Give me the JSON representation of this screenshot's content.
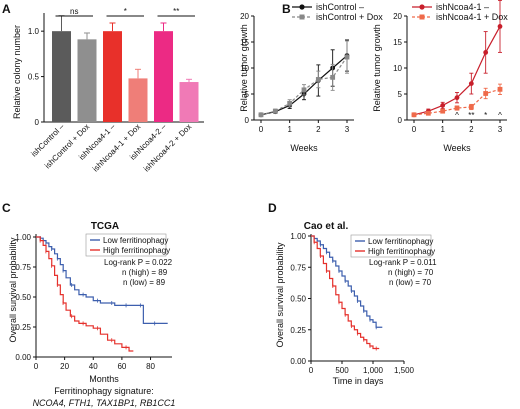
{
  "panels": {
    "A": "A",
    "B": "B",
    "C": "C",
    "D": "D"
  },
  "colors": {
    "dark_gray": "#5b5b5b",
    "mid_gray": "#8f8f8f",
    "red": "#e8302a",
    "salmon": "#ef7e78",
    "pink": "#ec2a84",
    "light_pink": "#f07ab6",
    "dark_red": "#c81f2b",
    "km_blue": "#3d5fae",
    "km_red": "#e5312c"
  },
  "chart_data": [
    {
      "id": "A",
      "type": "bar",
      "ylabel": "Relative colony number",
      "ylim": [
        0,
        1.2
      ],
      "yticks": [
        "0",
        "0.5",
        "1.0"
      ],
      "categories": [
        "ishControl –",
        "ishControl + Dox",
        "ishNcoa4-1 –",
        "ishNcoa4-1 + Dox",
        "ishNcoa4-2 –",
        "ishNcoa4-2 + Dox"
      ],
      "values": [
        1.0,
        0.91,
        1.0,
        0.48,
        1.0,
        0.44
      ],
      "errors": [
        0.17,
        0.07,
        0.09,
        0.1,
        0.09,
        0.03
      ],
      "significance": [
        {
          "from": 0,
          "to": 1,
          "label": "ns"
        },
        {
          "from": 2,
          "to": 3,
          "label": "*"
        },
        {
          "from": 4,
          "to": 5,
          "label": "**"
        }
      ]
    },
    {
      "id": "B-left",
      "type": "line",
      "xlabel": "Weeks",
      "ylabel": "Relative tumor growth",
      "x": [
        0,
        0.5,
        1,
        1.5,
        2,
        2.5,
        3
      ],
      "xticks": [
        "0",
        "1",
        "2",
        "3"
      ],
      "ylim": [
        0,
        20
      ],
      "yticks": [
        "0",
        "5",
        "10",
        "15",
        "20"
      ],
      "series": [
        {
          "name": "ishControl –",
          "values": [
            1.0,
            1.6,
            2.8,
            5.0,
            7.6,
            10.0,
            12.4
          ],
          "errors": [
            0.2,
            0.3,
            0.6,
            1.1,
            3.0,
            3.5,
            3.0
          ]
        },
        {
          "name": "ishControl + Dox",
          "values": [
            1.0,
            1.7,
            3.2,
            5.8,
            7.8,
            8.2,
            12.1
          ],
          "errors": [
            0.2,
            0.4,
            0.7,
            1.0,
            1.6,
            2.5,
            3.1
          ]
        }
      ]
    },
    {
      "id": "B-right",
      "type": "line",
      "xlabel": "Weeks",
      "ylabel": "Relative tumor growth",
      "x": [
        0,
        0.5,
        1,
        1.5,
        2,
        2.5,
        3
      ],
      "xticks": [
        "0",
        "1",
        "2",
        "3"
      ],
      "ylim": [
        0,
        20
      ],
      "yticks": [
        "0",
        "5",
        "10",
        "15",
        "20"
      ],
      "series": [
        {
          "name": "ishNcoa4-1 –",
          "values": [
            1.0,
            1.7,
            2.8,
            4.3,
            7.0,
            13.0,
            18.0
          ],
          "errors": [
            0.2,
            0.4,
            0.6,
            1.0,
            2.0,
            4.0,
            5.0
          ]
        },
        {
          "name": "ishNcoa4-1 + Dox",
          "values": [
            1.0,
            1.3,
            1.7,
            2.3,
            2.5,
            5.1,
            5.9
          ],
          "errors": [
            0.2,
            0.2,
            0.3,
            0.4,
            0.5,
            1.0,
            1.0
          ]
        }
      ],
      "annotations": [
        {
          "x": 1.5,
          "label": "^"
        },
        {
          "x": 2,
          "label": "**"
        },
        {
          "x": 2.5,
          "label": "*"
        },
        {
          "x": 3,
          "label": "^"
        }
      ]
    },
    {
      "id": "C",
      "type": "line",
      "title": "TCGA",
      "xlabel": "Months",
      "ylabel": "Overall survival probability",
      "xlim": [
        0,
        95
      ],
      "ylim": [
        0,
        1
      ],
      "yticks": [
        "0.00",
        "0.25",
        "0.50",
        "0.75",
        "1.00"
      ],
      "xticks": [
        "0",
        "20",
        "40",
        "60",
        "80"
      ],
      "legend": [
        "Low ferritinophagy",
        "High ferritinophagy"
      ],
      "stats": [
        "Log-rank P = 0.022",
        "n (high) = 89",
        "n (low) = 89"
      ],
      "signature_title": "Ferritinophagy signature:",
      "signature_genes": "NCOA4, FTH1, TAX1BP1, RB1CC1",
      "series": [
        {
          "name": "Low ferritinophagy",
          "x": [
            0,
            3,
            5,
            7,
            9,
            11,
            13,
            15,
            17,
            19,
            21,
            24,
            27,
            30,
            35,
            40,
            45,
            50,
            55,
            60,
            65,
            70,
            75,
            80,
            85,
            92
          ],
          "values": [
            1.0,
            0.99,
            0.97,
            0.95,
            0.92,
            0.9,
            0.86,
            0.82,
            0.77,
            0.72,
            0.66,
            0.6,
            0.56,
            0.52,
            0.5,
            0.47,
            0.45,
            0.45,
            0.43,
            0.43,
            0.43,
            0.43,
            0.28,
            0.28,
            0.28,
            0.28
          ]
        },
        {
          "name": "High ferritinophagy",
          "x": [
            0,
            3,
            5,
            7,
            9,
            11,
            13,
            15,
            17,
            19,
            21,
            24,
            27,
            30,
            35,
            40,
            45,
            50,
            55,
            60,
            65,
            68
          ],
          "values": [
            1.0,
            0.97,
            0.93,
            0.88,
            0.82,
            0.76,
            0.68,
            0.6,
            0.52,
            0.45,
            0.39,
            0.34,
            0.3,
            0.28,
            0.26,
            0.24,
            0.19,
            0.14,
            0.11,
            0.08,
            0.05,
            0.05
          ]
        }
      ]
    },
    {
      "id": "D",
      "type": "line",
      "title": "Cao et al.",
      "xlabel": "Time in days",
      "ylabel": "Overall survival probability",
      "xlim": [
        0,
        1500
      ],
      "ylim": [
        0,
        1
      ],
      "yticks": [
        "0.00",
        "0.25",
        "0.50",
        "0.75",
        "1.00"
      ],
      "xticks": [
        "0",
        "500",
        "1,000",
        "1,500"
      ],
      "legend": [
        "Low ferritinophagy",
        "High ferritinophagy"
      ],
      "stats": [
        "Log-rank P = 0.011",
        "n (high) = 70",
        "n (low) = 70"
      ],
      "series": [
        {
          "name": "Low ferritinophagy",
          "x": [
            0,
            50,
            100,
            150,
            200,
            250,
            300,
            350,
            400,
            450,
            500,
            550,
            600,
            650,
            700,
            750,
            800,
            850,
            900,
            950,
            1000,
            1050,
            1100,
            1150
          ],
          "values": [
            1.0,
            0.98,
            0.96,
            0.93,
            0.9,
            0.87,
            0.83,
            0.8,
            0.76,
            0.72,
            0.68,
            0.64,
            0.6,
            0.56,
            0.52,
            0.48,
            0.44,
            0.4,
            0.36,
            0.33,
            0.31,
            0.27,
            0.27,
            0.27
          ]
        },
        {
          "name": "High ferritinophagy",
          "x": [
            0,
            50,
            100,
            150,
            200,
            250,
            300,
            350,
            400,
            450,
            500,
            550,
            600,
            650,
            700,
            750,
            800,
            850,
            900,
            950,
            1000,
            1050,
            1100
          ],
          "values": [
            1.0,
            0.95,
            0.9,
            0.84,
            0.78,
            0.72,
            0.66,
            0.6,
            0.53,
            0.47,
            0.42,
            0.37,
            0.32,
            0.28,
            0.25,
            0.22,
            0.19,
            0.17,
            0.14,
            0.12,
            0.1,
            0.1,
            0.1
          ]
        }
      ]
    }
  ]
}
